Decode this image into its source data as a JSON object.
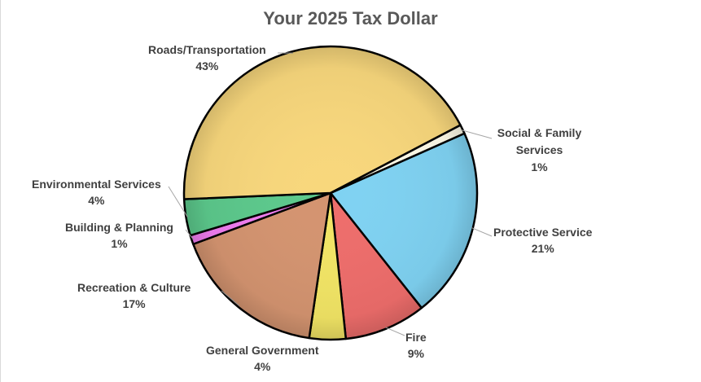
{
  "chart_data": {
    "type": "pie",
    "title": "Your 2025 Tax Dollar",
    "slices": [
      {
        "label": "Protective Service",
        "pct_text": "21%",
        "value": 21,
        "color": "#7fd2f2"
      },
      {
        "label": "Fire",
        "pct_text": "9%",
        "value": 9,
        "color": "#ee6d6b"
      },
      {
        "label": "General Government",
        "pct_text": "4%",
        "value": 4,
        "color": "#f2e565"
      },
      {
        "label": "Recreation & Culture",
        "pct_text": "17%",
        "value": 17,
        "color": "#d49470"
      },
      {
        "label": "Building & Planning",
        "pct_text": "1%",
        "value": 1,
        "color": "#f07df0"
      },
      {
        "label": "Environmental Services",
        "pct_text": "4%",
        "value": 4,
        "color": "#5cc98c"
      },
      {
        "label": "Roads/Transportation",
        "pct_text": "43%",
        "value": 43,
        "color": "#f8d77c"
      },
      {
        "label": "Social & Family Services",
        "pct_text": "1%",
        "value": 1,
        "color": "#fffbe8"
      }
    ]
  }
}
